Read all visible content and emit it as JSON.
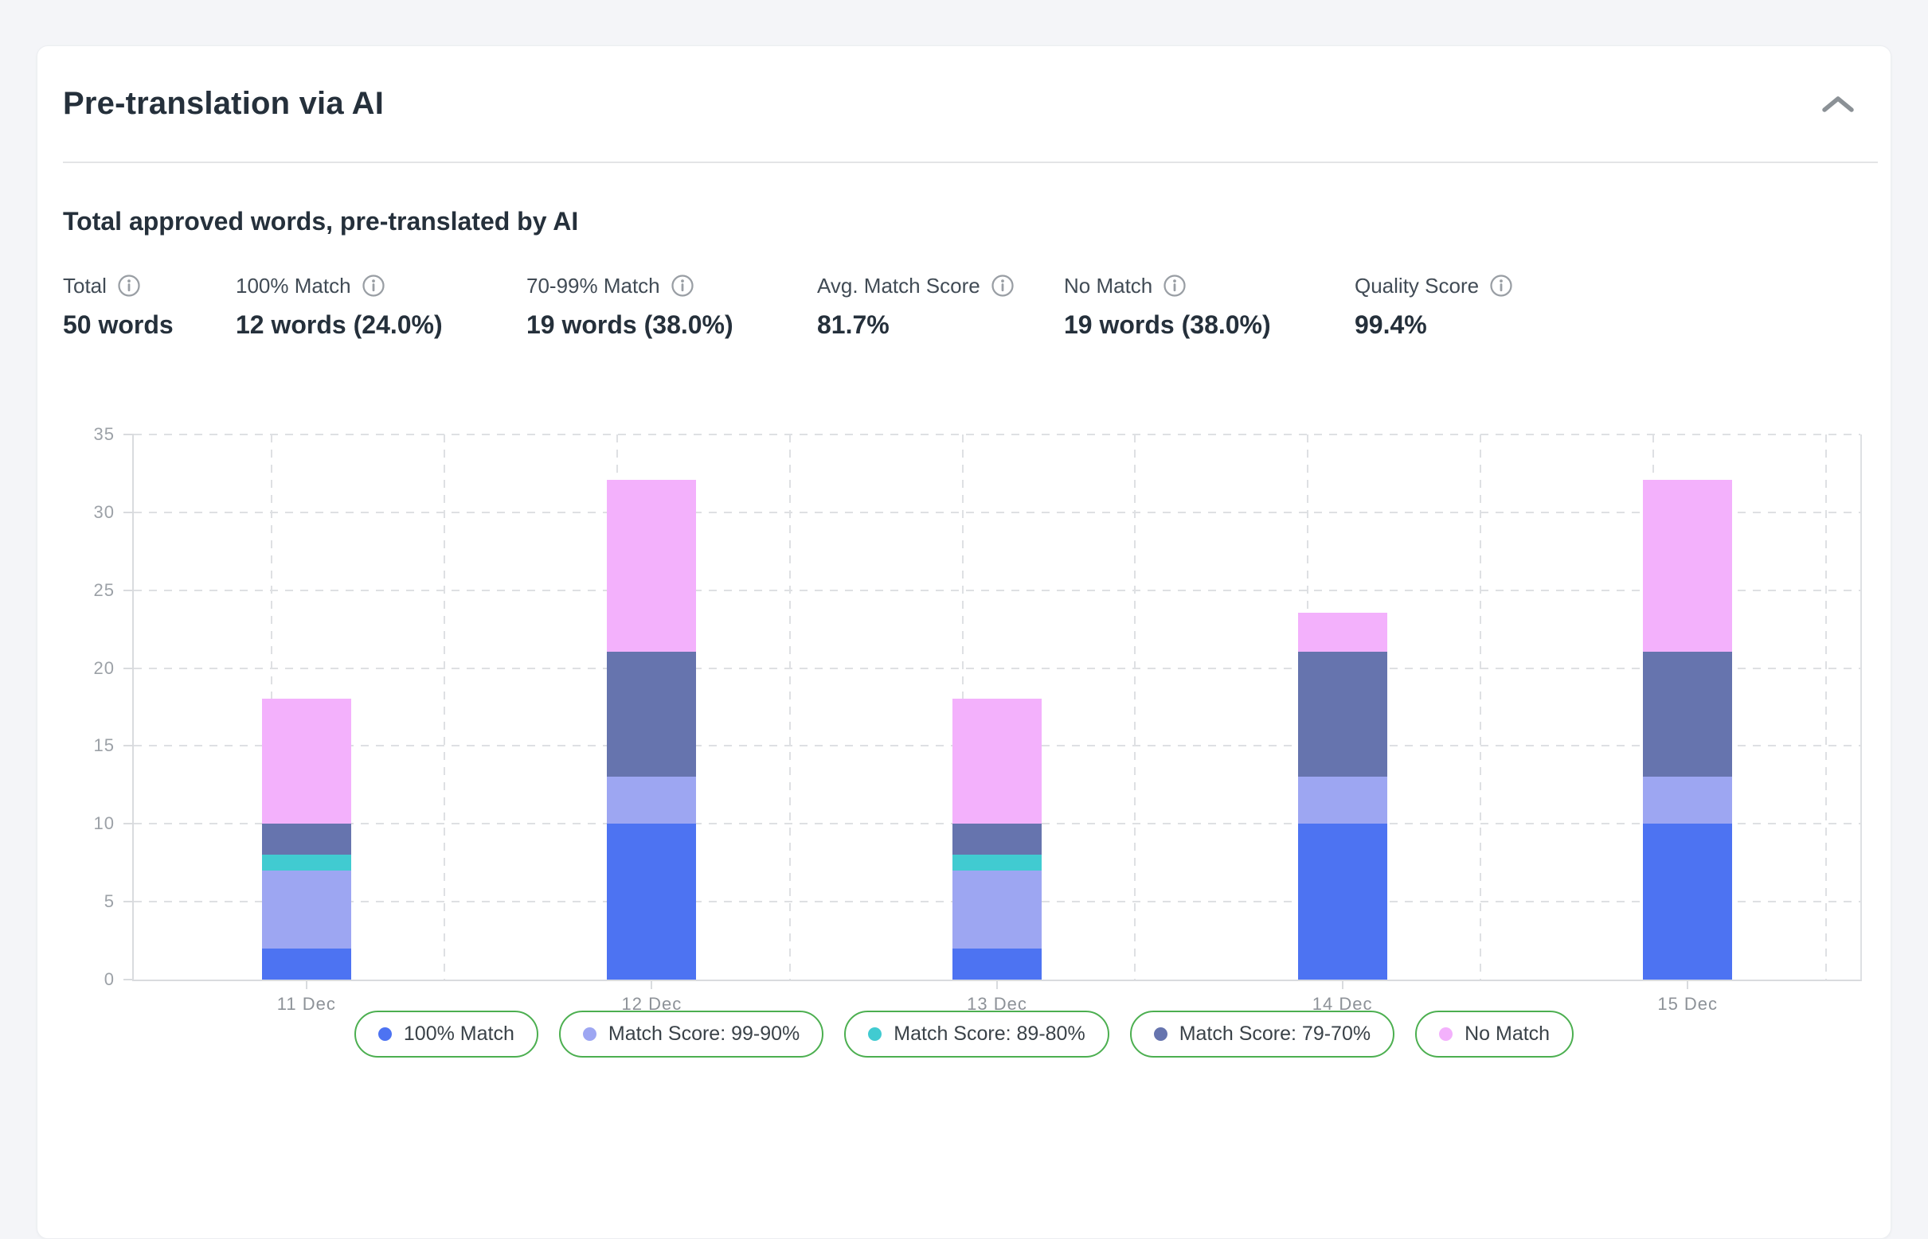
{
  "card": {
    "title": "Pre-translation via AI",
    "subtitle": "Total approved words, pre-translated by AI",
    "collapse_icon": "chevron-up",
    "stats": [
      {
        "label": "Total",
        "value": "50 words"
      },
      {
        "label": "100% Match",
        "value": "12 words (24.0%)"
      },
      {
        "label": "70-99% Match",
        "value": "19 words (38.0%)"
      },
      {
        "label": "Avg. Match Score",
        "value": "81.7%"
      },
      {
        "label": "No Match",
        "value": "19 words (38.0%)"
      },
      {
        "label": "Quality Score",
        "value": "99.4%"
      }
    ]
  },
  "chart_data": {
    "type": "bar",
    "stacked": true,
    "title": "Total approved words, pre-translated by AI",
    "categories": [
      "11 Dec",
      "12 Dec",
      "13 Dec",
      "14 Dec",
      "15 Dec"
    ],
    "series": [
      {
        "name": "100% Match",
        "color": "#4D73F2",
        "values": [
          2,
          10,
          2,
          10,
          10
        ]
      },
      {
        "name": "Match Score: 99-90%",
        "color": "#9DA6F2",
        "values": [
          5,
          3,
          5,
          3,
          3
        ]
      },
      {
        "name": "Match Score: 89-80%",
        "color": "#41CBD1",
        "values": [
          1,
          0,
          1,
          0,
          0
        ]
      },
      {
        "name": "Match Score: 79-70%",
        "color": "#6674AE",
        "values": [
          2,
          8,
          2,
          8,
          8
        ]
      },
      {
        "name": "No Match",
        "color": "#F3B1FC",
        "values": [
          8,
          11,
          8,
          2.5,
          11
        ]
      }
    ],
    "totals": [
      18,
      32,
      18,
      23.5,
      32
    ],
    "xlabel": "",
    "ylabel": "",
    "ylim": [
      0,
      35
    ],
    "yticks": [
      0,
      5,
      10,
      15,
      20,
      25,
      30,
      35
    ],
    "grid": "dashed",
    "legend_position": "bottom",
    "legend_pill_border": "#4CAF50",
    "info_icon_color": "#999EA4",
    "chevron_color": "#8B9196"
  }
}
